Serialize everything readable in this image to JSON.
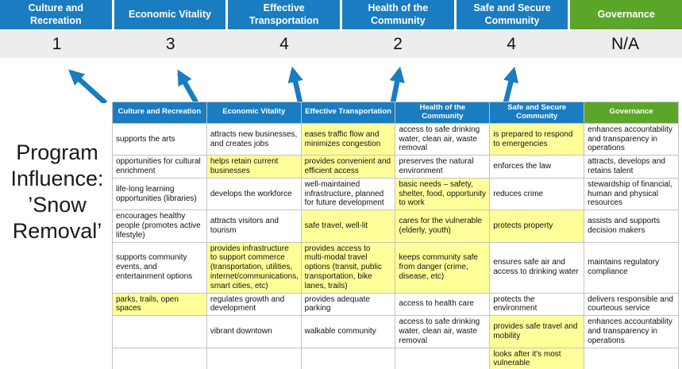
{
  "program_title": "Program\nInfluence:\n’Snow\nRemoval’",
  "colors": {
    "header_blue": "#1A7CC1",
    "header_green": "#5BA629",
    "highlight_yellow": "#FFFF99",
    "score_bar_gray": "#EDEDED",
    "arrow_blue": "#1A7CC1"
  },
  "top_bar": {
    "categories": [
      {
        "label": "Culture and Recreation",
        "score": "1",
        "accent": "blue"
      },
      {
        "label": "Economic Vitality",
        "score": "3",
        "accent": "blue"
      },
      {
        "label": "Effective Transportation",
        "score": "4",
        "accent": "blue"
      },
      {
        "label": "Health of the Community",
        "score": "2",
        "accent": "blue"
      },
      {
        "label": "Safe and Secure Community",
        "score": "4",
        "accent": "blue"
      },
      {
        "label": "Governance",
        "score": "N/A",
        "accent": "green"
      }
    ]
  },
  "table": {
    "headers": [
      {
        "label": "Culture and Recreation",
        "accent": "blue"
      },
      {
        "label": "Economic Vitality",
        "accent": "blue"
      },
      {
        "label": "Effective Transportation",
        "accent": "blue"
      },
      {
        "label": "Health of the Community",
        "accent": "blue"
      },
      {
        "label": "Safe and Secure Community",
        "accent": "blue"
      },
      {
        "label": "Governance",
        "accent": "green"
      }
    ],
    "rows": [
      [
        {
          "text": "supports the arts",
          "highlighted": false
        },
        {
          "text": "attracts new businesses, and creates jobs",
          "highlighted": false
        },
        {
          "text": "eases traffic flow and minimizes congestion",
          "highlighted": true
        },
        {
          "text": "access to safe drinking water, clean air, waste removal",
          "highlighted": false
        },
        {
          "text": "is prepared to respond to emergencies",
          "highlighted": true
        },
        {
          "text": "enhances accountability and transparency in operations",
          "highlighted": false
        }
      ],
      [
        {
          "text": "opportunities for cultural enrichment",
          "highlighted": false
        },
        {
          "text": "helps retain current businesses",
          "highlighted": true
        },
        {
          "text": "provides convenient and efficient access",
          "highlighted": true
        },
        {
          "text": "preserves the natural environment",
          "highlighted": false
        },
        {
          "text": "enforces the law",
          "highlighted": false
        },
        {
          "text": "attracts, develops and retains talent",
          "highlighted": false
        }
      ],
      [
        {
          "text": "life-long learning opportunities (libraries)",
          "highlighted": false
        },
        {
          "text": "develops the workforce",
          "highlighted": false
        },
        {
          "text": "well-maintained infrastructure, planned for future development",
          "highlighted": false
        },
        {
          "text": "basic needs – safety, shelter, food, opportunity to work",
          "highlighted": true
        },
        {
          "text": "reduces crime",
          "highlighted": false
        },
        {
          "text": "stewardship of financial, human and physical resources",
          "highlighted": false
        }
      ],
      [
        {
          "text": "encourages healthy people (promotes active lifestyle)",
          "highlighted": false
        },
        {
          "text": "attracts visitors and tourism",
          "highlighted": false
        },
        {
          "text": "safe travel, well-lit",
          "highlighted": true
        },
        {
          "text": "cares for the vulnerable (elderly, youth)",
          "highlighted": true
        },
        {
          "text": "protects property",
          "highlighted": true
        },
        {
          "text": "assists and supports decision makers",
          "highlighted": false
        }
      ],
      [
        {
          "text": "supports community events, and entertainment options",
          "highlighted": false
        },
        {
          "text": "provides infrastructure to support commerce (transportation, utilities, internet/communications, smart cities, etc)",
          "highlighted": true
        },
        {
          "text": "provides access to multi-modal travel options (transit, public transportation, bike lanes, trails)",
          "highlighted": true
        },
        {
          "text": "keeps community safe from danger (crime, disease, etc)",
          "highlighted": true
        },
        {
          "text": "ensures safe air and access to drinking water",
          "highlighted": false
        },
        {
          "text": "maintains regulatory compliance",
          "highlighted": false
        }
      ],
      [
        {
          "text": "parks, trails, open spaces",
          "highlighted": true
        },
        {
          "text": "regulates growth and development",
          "highlighted": false
        },
        {
          "text": "provides adequate parking",
          "highlighted": false
        },
        {
          "text": "access to health care",
          "highlighted": false
        },
        {
          "text": "protects the environment",
          "highlighted": false
        },
        {
          "text": "delivers responsible and courteous service",
          "highlighted": false
        }
      ],
      [
        {
          "text": "",
          "highlighted": false
        },
        {
          "text": "vibrant downtown",
          "highlighted": false
        },
        {
          "text": "walkable community",
          "highlighted": false
        },
        {
          "text": "access to safe drinking water, clean air, waste removal",
          "highlighted": false
        },
        {
          "text": "provides safe travel and mobility",
          "highlighted": true
        },
        {
          "text": "enhances accountability and transparency in operations",
          "highlighted": false
        }
      ],
      [
        {
          "text": "",
          "highlighted": false
        },
        {
          "text": "",
          "highlighted": false
        },
        {
          "text": "",
          "highlighted": false
        },
        {
          "text": "",
          "highlighted": false
        },
        {
          "text": "looks after it's most vulnerable",
          "highlighted": true
        },
        {
          "text": "",
          "highlighted": false
        }
      ]
    ]
  }
}
